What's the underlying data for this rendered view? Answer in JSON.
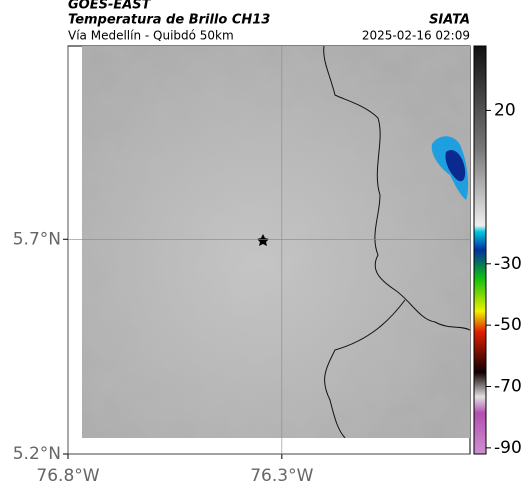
{
  "header": {
    "title": "GOES-EAST",
    "subtitle": "Temperatura de Brillo CH13",
    "source": "SIATA",
    "location": "Vía Medellín - Quibdó 50km",
    "datetime": "2025-02-16 02:09"
  },
  "map": {
    "xlim": [
      -76.8,
      -75.86
    ],
    "ylim": [
      5.2,
      6.15
    ],
    "xticks": [
      {
        "value": -76.8,
        "label": "76.8°W"
      },
      {
        "value": -76.3,
        "label": "76.3°W"
      }
    ],
    "yticks": [
      {
        "value": 5.7,
        "label": "5.7°N"
      },
      {
        "value": 5.2,
        "label": "5.2°N"
      }
    ]
  },
  "colorbar": {
    "lim": [
      -92,
      41
    ],
    "ticks": [
      20,
      -30,
      -50,
      -70,
      -90
    ]
  }
}
